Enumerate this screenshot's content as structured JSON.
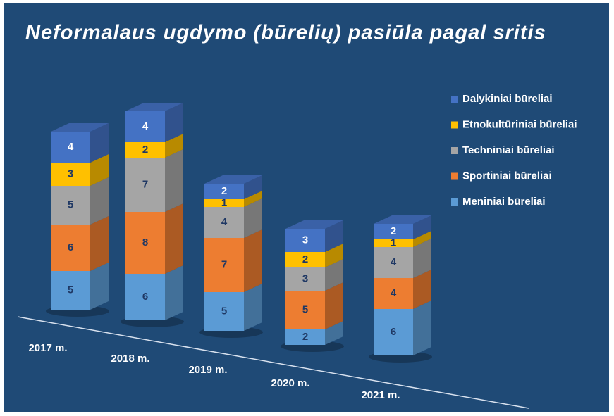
{
  "chart_data": {
    "type": "bar3d_stacked",
    "title": "Neformalaus ugdymo (būrelių) pasiūla pagal sritis",
    "categories": [
      "2017 m.",
      "2018 m.",
      "2019 m.",
      "2020 m.",
      "2021 m."
    ],
    "series": [
      {
        "name": "Meniniai būreliai",
        "color": "#5b9bd5",
        "label_color": "#1f3864",
        "values": [
          5,
          6,
          5,
          2,
          6
        ]
      },
      {
        "name": "Sportiniai būreliai",
        "color": "#ed7d31",
        "label_color": "#1f3864",
        "values": [
          6,
          8,
          7,
          5,
          4
        ]
      },
      {
        "name": "Techniniai būreliai",
        "color": "#a5a5a5",
        "label_color": "#1f3864",
        "values": [
          5,
          7,
          4,
          3,
          4
        ]
      },
      {
        "name": "Etnokultūriniai būreliai",
        "color": "#ffc000",
        "label_color": "#1f3864",
        "values": [
          3,
          2,
          1,
          2,
          1
        ]
      },
      {
        "name": "Dalykiniai būreliai",
        "color": "#4472c4",
        "label_color": "#ffffff",
        "values": [
          4,
          4,
          2,
          3,
          2
        ]
      }
    ],
    "legend": "right"
  }
}
